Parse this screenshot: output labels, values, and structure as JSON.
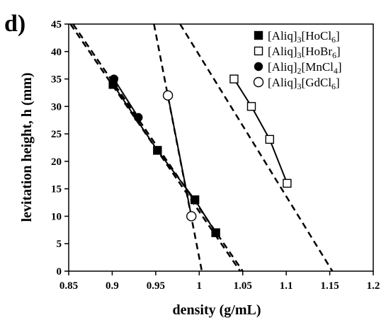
{
  "chart_data": {
    "type": "line",
    "panel_label": "d)",
    "xlabel": "density (g/mL)",
    "ylabel": "levitation height, h (mm)",
    "xlim": [
      0.85,
      1.2
    ],
    "ylim": [
      0,
      45
    ],
    "x_ticks": [
      "0.85",
      "0.9",
      "0.95",
      "1",
      "1.05",
      "1.1",
      "1.15",
      "1.2"
    ],
    "y_ticks": [
      "0",
      "5",
      "10",
      "15",
      "20",
      "25",
      "30",
      "35",
      "40",
      "45"
    ],
    "grid": false,
    "legend_position": "top-right",
    "series": [
      {
        "legend_main": "[Aliq]",
        "legend_sub1": "3",
        "legend_bracket": "[HoCl",
        "legend_sub2": "6",
        "legend_tail": "]",
        "marker": "filled-square",
        "color": "#000000",
        "points": [
          [
            0.901,
            34
          ],
          [
            0.952,
            22
          ],
          [
            0.995,
            13
          ],
          [
            1.019,
            7
          ]
        ],
        "extrapolated_line": [
          [
            0.855,
            45
          ],
          [
            1.05,
            0
          ]
        ]
      },
      {
        "legend_main": "[Aliq]",
        "legend_sub1": "3",
        "legend_bracket": "[HoBr",
        "legend_sub2": "6",
        "legend_tail": "]",
        "marker": "open-square",
        "color": "#000000",
        "points": [
          [
            1.04,
            35
          ],
          [
            1.06,
            30
          ],
          [
            1.081,
            24
          ],
          [
            1.101,
            16
          ]
        ],
        "extrapolated_line": [
          [
            0.978,
            45
          ],
          [
            1.153,
            0
          ]
        ]
      },
      {
        "legend_main": "[Aliq]",
        "legend_sub1": "2",
        "legend_bracket": "[MnCl",
        "legend_sub2": "4",
        "legend_tail": "]",
        "marker": "filled-circle",
        "color": "#000000",
        "points": [
          [
            0.902,
            35
          ],
          [
            0.93,
            28
          ]
        ],
        "extrapolated_line": [
          [
            0.852,
            45
          ],
          [
            1.047,
            0
          ]
        ]
      },
      {
        "legend_main": "[Aliq]",
        "legend_sub1": "3",
        "legend_bracket": "[GdCl",
        "legend_sub2": "6",
        "legend_tail": "]",
        "marker": "open-circle",
        "color": "#000000",
        "points": [
          [
            0.964,
            32
          ],
          [
            0.991,
            10
          ]
        ],
        "extrapolated_line": [
          [
            0.948,
            45
          ],
          [
            1.003,
            0
          ]
        ]
      }
    ]
  }
}
